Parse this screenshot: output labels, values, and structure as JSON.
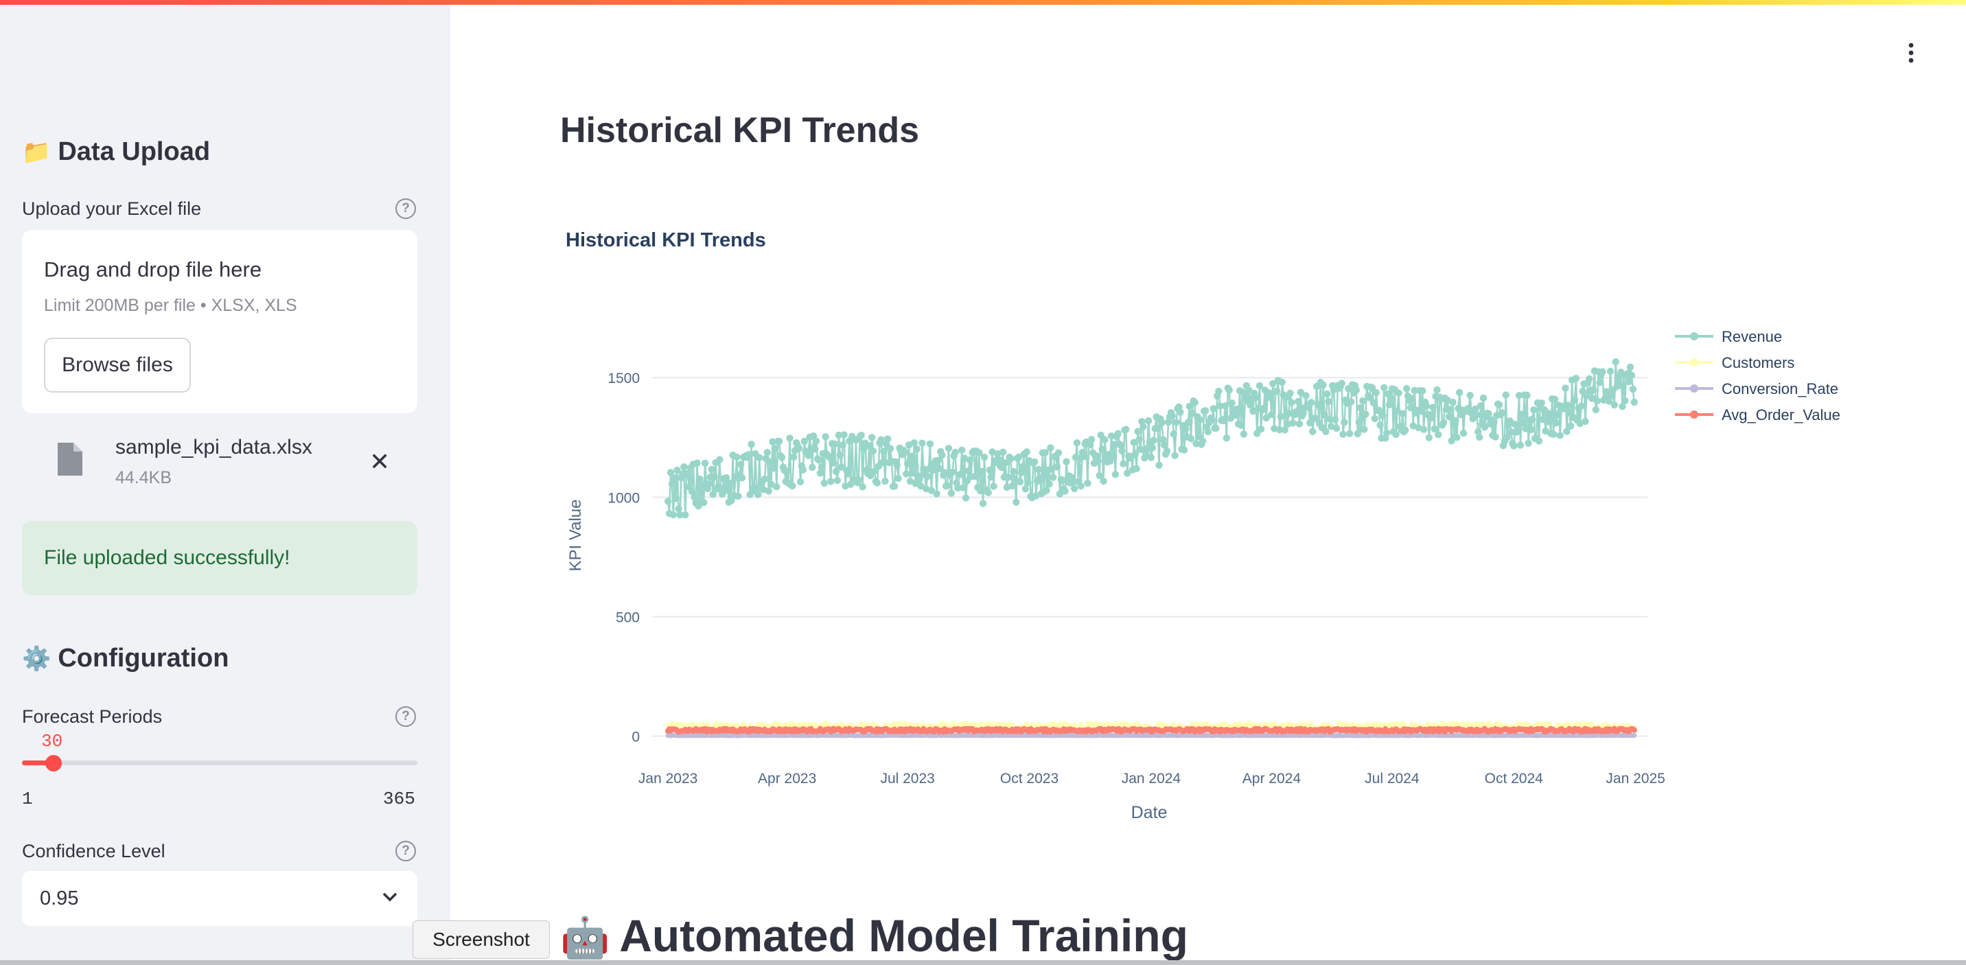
{
  "sidebar": {
    "upload_heading": "Data Upload",
    "upload_label": "Upload your Excel file",
    "dropzone_title": "Drag and drop file here",
    "dropzone_hint": "Limit 200MB per file • XLSX, XLS",
    "browse_label": "Browse files",
    "file_name": "sample_kpi_data.xlsx",
    "file_size": "44.4KB",
    "success_message": "File uploaded successfully!",
    "config_heading": "Configuration",
    "forecast_label": "Forecast Periods",
    "forecast_value": "30",
    "forecast_min": "1",
    "forecast_max": "365",
    "confidence_label": "Confidence Level",
    "confidence_value": "0.95"
  },
  "main": {
    "page_title": "Historical KPI Trends",
    "next_section_title": "Automated Model Training",
    "tooltip": "Screenshot"
  },
  "chart_data": {
    "type": "line",
    "title": "Historical KPI Trends",
    "xlabel": "Date",
    "ylabel": "KPI Value",
    "x_ticks": [
      "Jan 2023",
      "Apr 2023",
      "Jul 2023",
      "Oct 2023",
      "Jan 2024",
      "Apr 2024",
      "Jul 2024",
      "Oct 2024",
      "Jan 2025"
    ],
    "y_ticks": [
      0,
      500,
      1000,
      1500
    ],
    "ylim": [
      -50,
      1650
    ],
    "xlim": [
      "2022-12-20",
      "2025-01-10"
    ],
    "date_range": [
      "2023-01-01",
      "2024-12-31"
    ],
    "legend_position": "right",
    "grid": true,
    "series": [
      {
        "name": "Revenue",
        "color": "#99d5c9",
        "approx_trend": [
          [
            "2023-01-01",
            1020
          ],
          [
            "2023-02-01",
            1050
          ],
          [
            "2023-03-01",
            1110
          ],
          [
            "2023-04-01",
            1140
          ],
          [
            "2023-05-01",
            1160
          ],
          [
            "2023-06-01",
            1150
          ],
          [
            "2023-07-01",
            1130
          ],
          [
            "2023-08-01",
            1100
          ],
          [
            "2023-09-01",
            1080
          ],
          [
            "2023-10-01",
            1085
          ],
          [
            "2023-11-01",
            1120
          ],
          [
            "2023-12-01",
            1180
          ],
          [
            "2024-01-01",
            1220
          ],
          [
            "2024-02-01",
            1300
          ],
          [
            "2024-03-01",
            1360
          ],
          [
            "2024-04-01",
            1380
          ],
          [
            "2024-05-01",
            1380
          ],
          [
            "2024-06-01",
            1370
          ],
          [
            "2024-07-01",
            1350
          ],
          [
            "2024-08-01",
            1340
          ],
          [
            "2024-09-01",
            1330
          ],
          [
            "2024-10-01",
            1320
          ],
          [
            "2024-11-01",
            1360
          ],
          [
            "2024-12-01",
            1420
          ],
          [
            "2024-12-31",
            1490
          ]
        ]
      },
      {
        "name": "Customers",
        "color": "#ffffb3",
        "approx_value": 40
      },
      {
        "name": "Conversion_Rate",
        "color": "#bebada",
        "approx_value": 3
      },
      {
        "name": "Avg_Order_Value",
        "color": "#fb8072",
        "approx_value": 25
      }
    ]
  }
}
